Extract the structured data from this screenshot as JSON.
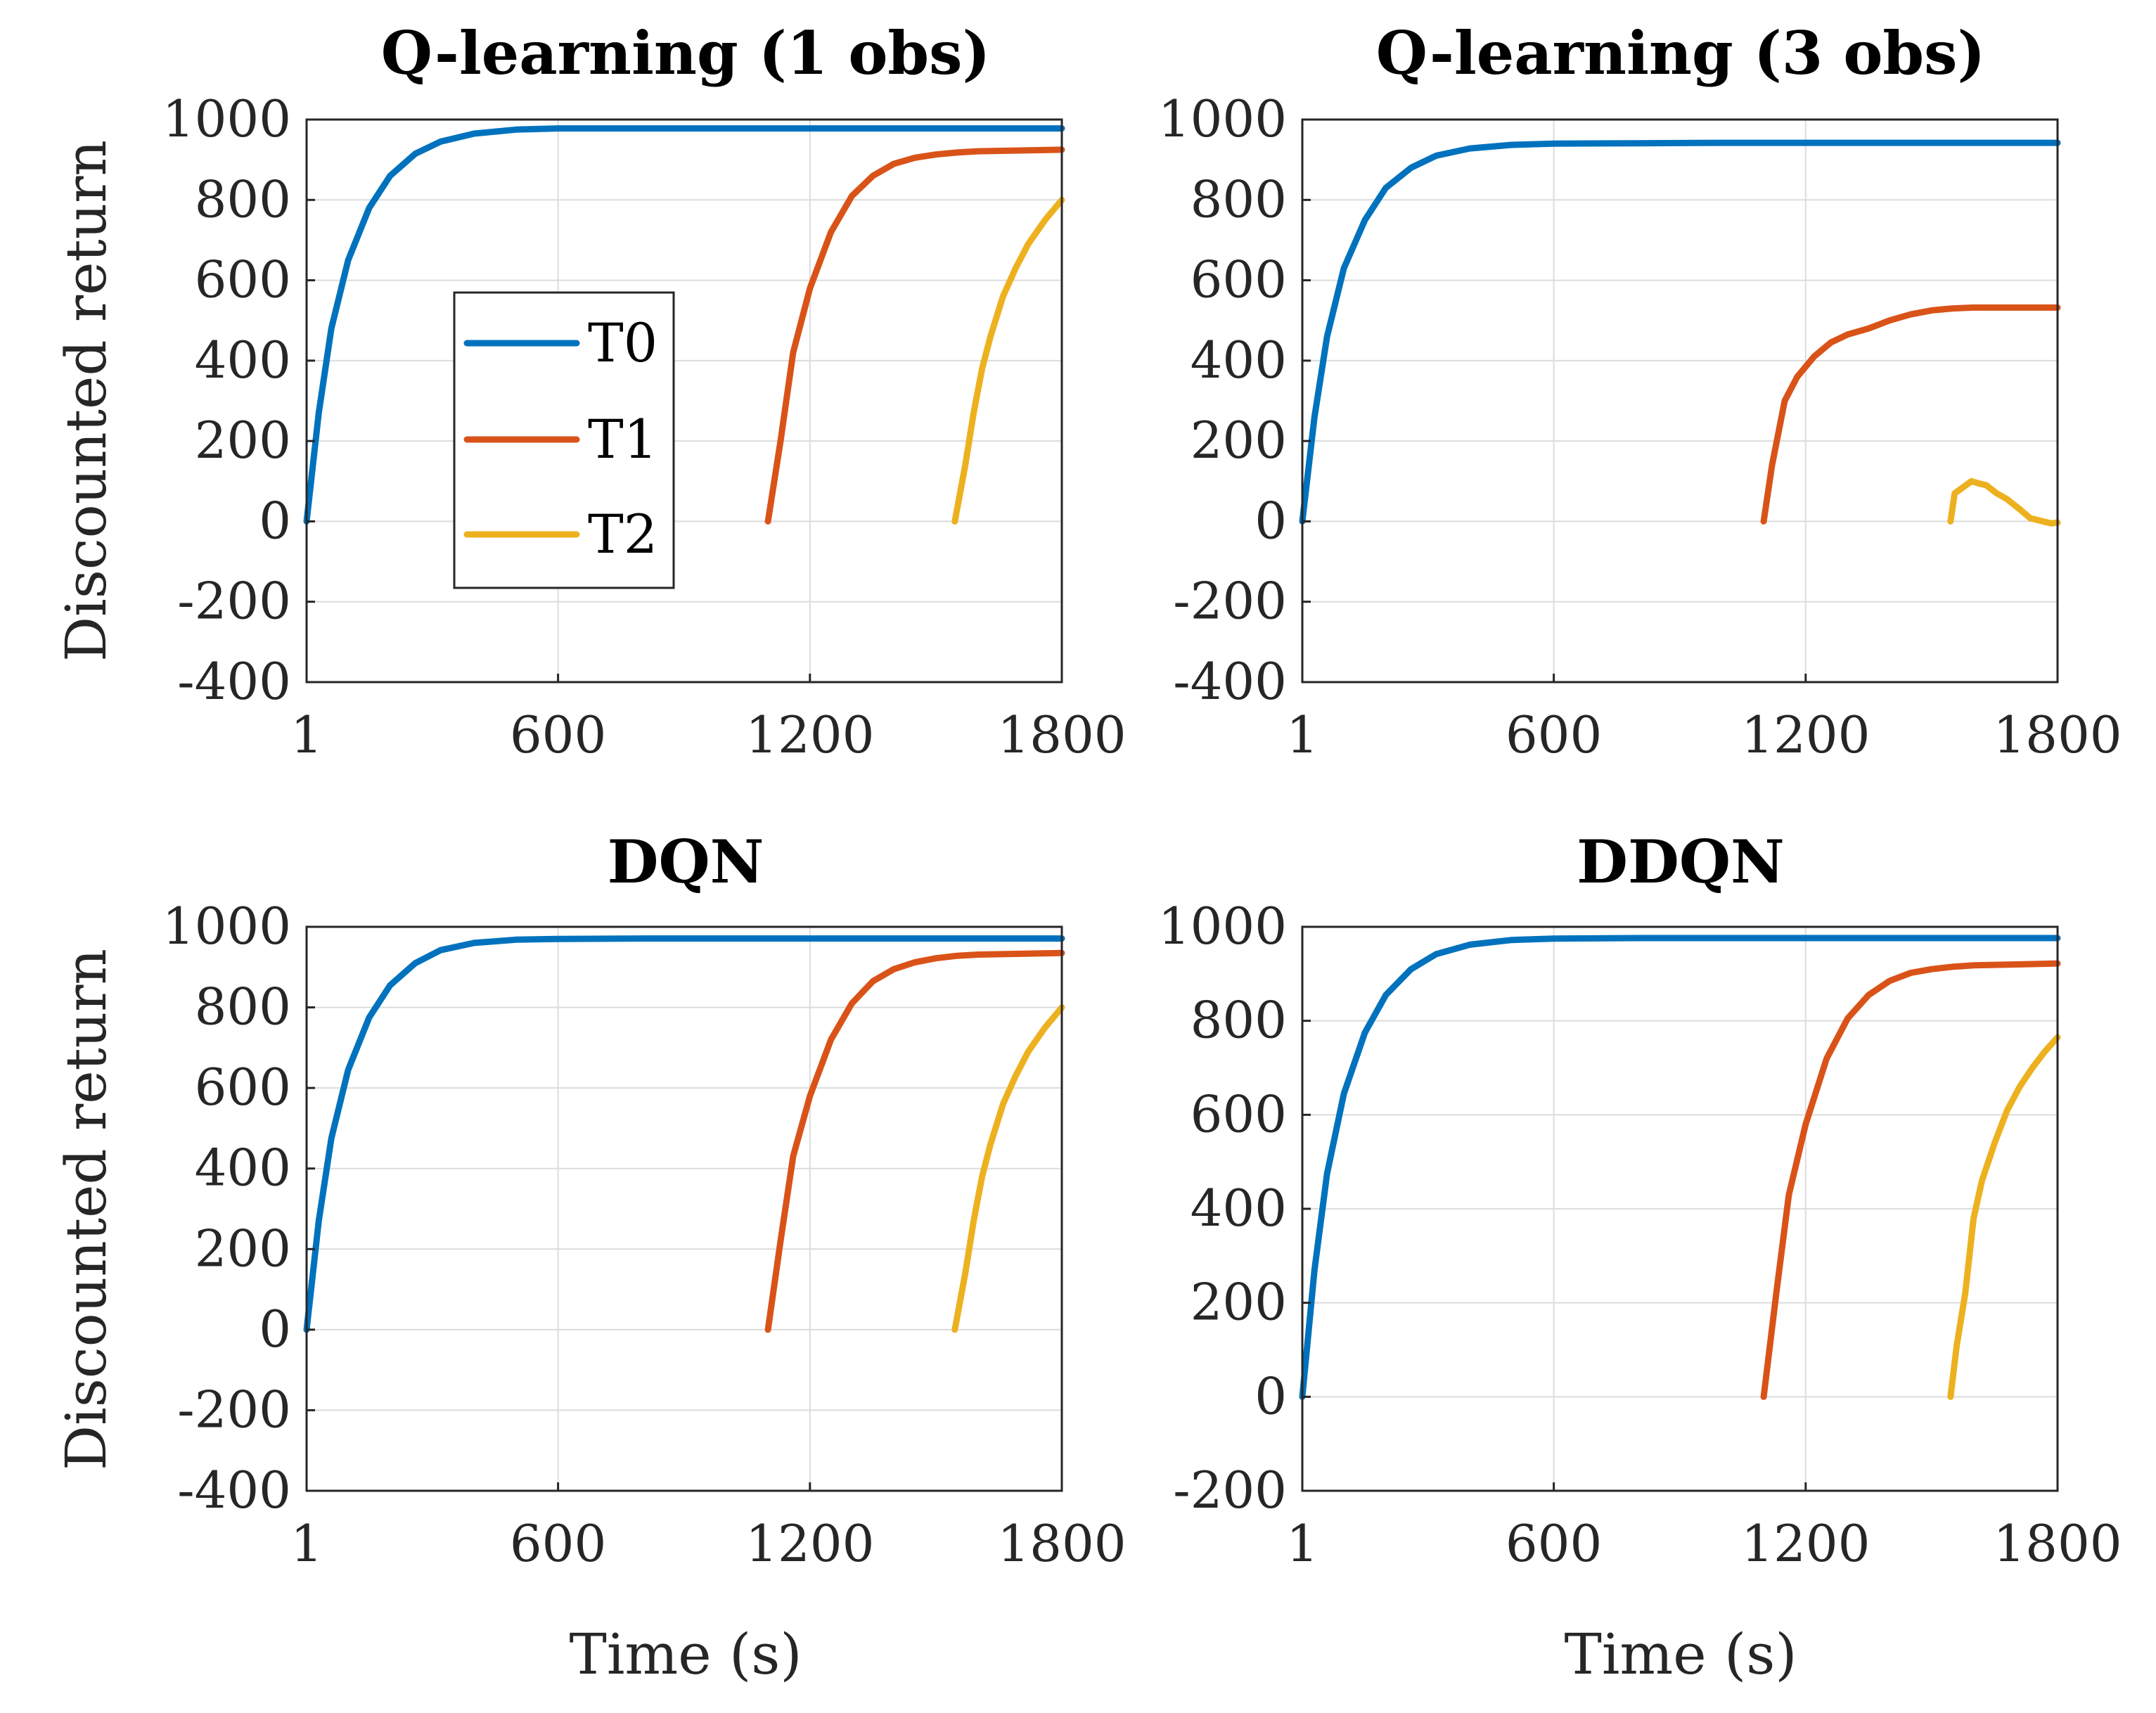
{
  "colors": {
    "T0": "#0072BD",
    "T1": "#D95319",
    "T2": "#EDB120"
  },
  "legend": {
    "entries": [
      "T0",
      "T1",
      "T2"
    ],
    "placement": "inside top-panel-1, center-left"
  },
  "chart_data": [
    {
      "type": "line",
      "title": "Q-learning (1 obs)",
      "xlabel": "",
      "ylabel": "Discounted return",
      "xlim": [
        1,
        1800
      ],
      "ylim": [
        -400,
        1000
      ],
      "xticks": [
        "1",
        "600",
        "1200",
        "1800"
      ],
      "yticks": [
        "1000",
        "800",
        "600",
        "400",
        "200",
        "0",
        "-200",
        "-400"
      ],
      "grid": true,
      "series": [
        {
          "name": "T0",
          "x": [
            1,
            30,
            60,
            100,
            150,
            200,
            260,
            320,
            400,
            500,
            600,
            800,
            1000,
            1200,
            1500,
            1800
          ],
          "y": [
            0,
            270,
            480,
            650,
            780,
            860,
            915,
            945,
            965,
            975,
            978,
            978,
            978,
            978,
            978,
            978
          ]
        },
        {
          "name": "T1",
          "x": [
            1100,
            1130,
            1160,
            1200,
            1250,
            1300,
            1350,
            1400,
            1450,
            1500,
            1550,
            1600,
            1700,
            1800
          ],
          "y": [
            0,
            200,
            420,
            580,
            720,
            810,
            860,
            890,
            905,
            913,
            918,
            921,
            923,
            925
          ]
        },
        {
          "name": "T2",
          "x": [
            1545,
            1570,
            1590,
            1610,
            1630,
            1660,
            1690,
            1720,
            1760,
            1800
          ],
          "y": [
            0,
            140,
            270,
            380,
            460,
            560,
            630,
            690,
            750,
            800
          ]
        }
      ]
    },
    {
      "type": "line",
      "title": "Q-learning (3 obs)",
      "xlabel": "",
      "ylabel": "",
      "xlim": [
        1,
        1800
      ],
      "ylim": [
        -400,
        1000
      ],
      "xticks": [
        "1",
        "600",
        "1200",
        "1800"
      ],
      "yticks": [
        "1000",
        "800",
        "600",
        "400",
        "200",
        "0",
        "-200",
        "-400"
      ],
      "grid": true,
      "series": [
        {
          "name": "T0",
          "x": [
            1,
            30,
            60,
            100,
            150,
            200,
            260,
            320,
            400,
            500,
            600,
            800,
            1000,
            1200,
            1500,
            1800
          ],
          "y": [
            0,
            260,
            460,
            630,
            750,
            830,
            880,
            910,
            928,
            937,
            940,
            941,
            942,
            942,
            942,
            942
          ]
        },
        {
          "name": "T1",
          "x": [
            1100,
            1120,
            1150,
            1180,
            1220,
            1260,
            1300,
            1350,
            1400,
            1450,
            1500,
            1550,
            1600,
            1700,
            1800
          ],
          "y": [
            0,
            140,
            300,
            360,
            410,
            445,
            465,
            480,
            500,
            515,
            525,
            530,
            532,
            532,
            532
          ]
        },
        {
          "name": "T2",
          "x": [
            1545,
            1555,
            1575,
            1595,
            1610,
            1630,
            1655,
            1680,
            1710,
            1735,
            1765,
            1785,
            1800
          ],
          "y": [
            0,
            70,
            85,
            100,
            95,
            90,
            70,
            55,
            30,
            8,
            0,
            -5,
            -3
          ]
        }
      ]
    },
    {
      "type": "line",
      "title": "DQN",
      "xlabel": "Time (s)",
      "ylabel": "Discounted return",
      "xlim": [
        1,
        1800
      ],
      "ylim": [
        -400,
        1000
      ],
      "xticks": [
        "1",
        "600",
        "1200",
        "1800"
      ],
      "yticks": [
        "1000",
        "800",
        "600",
        "400",
        "200",
        "0",
        "-200",
        "-400"
      ],
      "grid": true,
      "series": [
        {
          "name": "T0",
          "x": [
            1,
            30,
            60,
            100,
            150,
            200,
            260,
            320,
            400,
            500,
            600,
            800,
            1000,
            1200,
            1500,
            1800
          ],
          "y": [
            0,
            270,
            475,
            645,
            775,
            855,
            910,
            942,
            960,
            968,
            970,
            971,
            971,
            971,
            971,
            971
          ]
        },
        {
          "name": "T1",
          "x": [
            1100,
            1130,
            1160,
            1200,
            1250,
            1300,
            1350,
            1400,
            1450,
            1500,
            1550,
            1600,
            1700,
            1800
          ],
          "y": [
            0,
            220,
            430,
            580,
            720,
            810,
            865,
            895,
            912,
            922,
            928,
            931,
            933,
            935
          ]
        },
        {
          "name": "T2",
          "x": [
            1545,
            1570,
            1590,
            1610,
            1630,
            1660,
            1690,
            1720,
            1760,
            1800
          ],
          "y": [
            0,
            140,
            270,
            380,
            460,
            560,
            630,
            690,
            750,
            800
          ]
        }
      ]
    },
    {
      "type": "line",
      "title": "DDQN",
      "xlabel": "Time (s)",
      "ylabel": "",
      "xlim": [
        1,
        1800
      ],
      "ylim": [
        -200,
        1000
      ],
      "xticks": [
        "1",
        "600",
        "1200",
        "1800"
      ],
      "yticks": [
        "1000",
        "800",
        "600",
        "400",
        "200",
        "0",
        "-200"
      ],
      "grid": true,
      "series": [
        {
          "name": "T0",
          "x": [
            1,
            30,
            60,
            100,
            150,
            200,
            260,
            320,
            400,
            500,
            600,
            800,
            1000,
            1200,
            1500,
            1800
          ],
          "y": [
            0,
            270,
            475,
            645,
            775,
            855,
            910,
            942,
            962,
            972,
            975,
            976,
            976,
            976,
            976,
            976
          ]
        },
        {
          "name": "T1",
          "x": [
            1100,
            1130,
            1160,
            1200,
            1250,
            1300,
            1350,
            1400,
            1450,
            1500,
            1550,
            1600,
            1700,
            1800
          ],
          "y": [
            0,
            220,
            430,
            580,
            720,
            805,
            855,
            885,
            902,
            910,
            915,
            918,
            920,
            922
          ]
        },
        {
          "name": "T2",
          "x": [
            1545,
            1560,
            1580,
            1600,
            1620,
            1650,
            1680,
            1710,
            1740,
            1770,
            1800
          ],
          "y": [
            0,
            110,
            220,
            380,
            460,
            540,
            610,
            660,
            700,
            735,
            765
          ]
        }
      ]
    }
  ]
}
